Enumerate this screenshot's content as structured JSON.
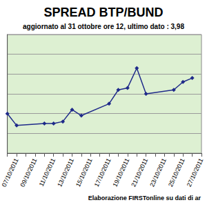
{
  "chart_data": {
    "type": "line",
    "title": "SPREAD BTP/BUND",
    "subtitle": "aggiornato al 31 ottobre ore 12, ultimo dato : 3,98",
    "annotation": "Elaborazione FIRSTonline su dati di ar",
    "categories": [
      null,
      "07/10/2011",
      null,
      "09/10/2011",
      null,
      "11/10/2011",
      null,
      "13/10/2011",
      null,
      "15/10/2011",
      null,
      "17/10/2011",
      null,
      "19/10/2011",
      null,
      "21/10/2011",
      null,
      "23/10/2011",
      null,
      "25/10/2011",
      null,
      "27/10/2011"
    ],
    "values": [
      3.7,
      3.64,
      null,
      null,
      3.65,
      3.65,
      3.66,
      3.72,
      3.69,
      null,
      null,
      3.75,
      3.82,
      3.83,
      3.93,
      3.8,
      null,
      null,
      3.82,
      3.86,
      3.88,
      null
    ],
    "color": "#1f2a8a",
    "marker": "diamond",
    "ylim": [
      3.5,
      4.1
    ],
    "yticks": [
      3.5,
      3.6,
      3.7,
      3.8,
      3.9,
      4.0,
      4.1
    ],
    "grid": true,
    "tick_labels": "x"
  }
}
